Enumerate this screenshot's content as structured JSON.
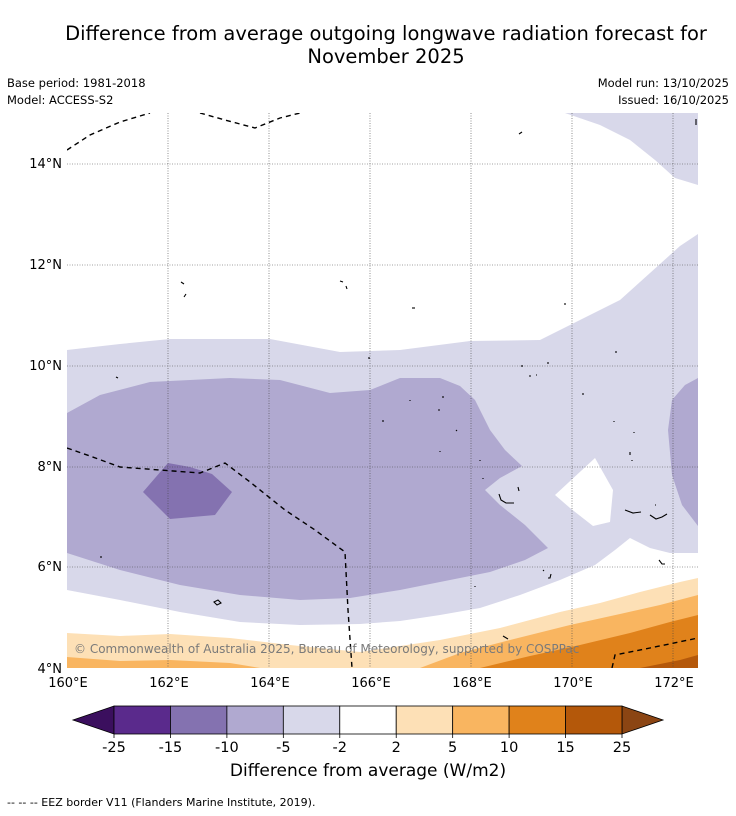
{
  "title_line1": "Difference from average outgoing longwave radiation forecast for",
  "title_line2": "November 2025",
  "base_period": "Base period: 1981-2018",
  "model": "Model: ACCESS-S2",
  "model_run": "Model run: 13/10/2025",
  "issued": "Issued: 16/10/2025",
  "copyright": "© Commonwealth of Australia 2025, Bureau of Meteorology, supported by COSPPac",
  "lon_ticks": [
    "160°E",
    "162°E",
    "164°E",
    "166°E",
    "168°E",
    "170°E",
    "172°E"
  ],
  "lat_ticks": [
    "14°N",
    "12°N",
    "10°N",
    "8°N",
    "6°N",
    "4°N"
  ],
  "colorbar": {
    "tick_labels": [
      "-25",
      "-15",
      "-10",
      "-5",
      "-2",
      "2",
      "5",
      "10",
      "15",
      "25"
    ],
    "colors": [
      "#5a2a8c",
      "#8472b0",
      "#b0a9d0",
      "#d8d8ea",
      "#ffffff",
      "#fde0b6",
      "#f9b560",
      "#e0821b",
      "#b4580a"
    ],
    "under_color": "#3b0f5e",
    "over_color": "#8b4513",
    "label": "Difference from average (W/m2)"
  },
  "legend_note": "--  --  -- EEZ border V11 (Flanders Marine Institute, 2019)."
}
